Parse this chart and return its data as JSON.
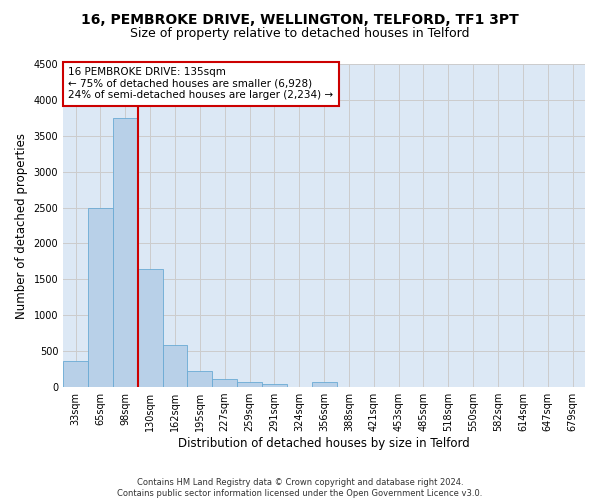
{
  "title_line1": "16, PEMBROKE DRIVE, WELLINGTON, TELFORD, TF1 3PT",
  "title_line2": "Size of property relative to detached houses in Telford",
  "xlabel": "Distribution of detached houses by size in Telford",
  "ylabel": "Number of detached properties",
  "footnote": "Contains HM Land Registry data © Crown copyright and database right 2024.\nContains public sector information licensed under the Open Government Licence v3.0.",
  "bin_labels": [
    "33sqm",
    "65sqm",
    "98sqm",
    "130sqm",
    "162sqm",
    "195sqm",
    "227sqm",
    "259sqm",
    "291sqm",
    "324sqm",
    "356sqm",
    "388sqm",
    "421sqm",
    "453sqm",
    "485sqm",
    "518sqm",
    "550sqm",
    "582sqm",
    "614sqm",
    "647sqm",
    "679sqm"
  ],
  "bar_values": [
    370,
    2500,
    3750,
    1640,
    590,
    230,
    110,
    65,
    45,
    0,
    65,
    0,
    0,
    0,
    0,
    0,
    0,
    0,
    0,
    0,
    0
  ],
  "bar_color": "#b8d0e8",
  "bar_edge_color": "#6aaad4",
  "vline_color": "#cc0000",
  "annotation_text": "16 PEMBROKE DRIVE: 135sqm\n← 75% of detached houses are smaller (6,928)\n24% of semi-detached houses are larger (2,234) →",
  "annotation_box_color": "white",
  "annotation_box_edge": "#cc0000",
  "ylim": [
    0,
    4500
  ],
  "yticks": [
    0,
    500,
    1000,
    1500,
    2000,
    2500,
    3000,
    3500,
    4000,
    4500
  ],
  "grid_color": "#cccccc",
  "bg_color": "#dce8f5",
  "title_fontsize": 10,
  "subtitle_fontsize": 9,
  "label_fontsize": 8.5,
  "tick_fontsize": 7,
  "annot_fontsize": 7.5,
  "footnote_fontsize": 6
}
